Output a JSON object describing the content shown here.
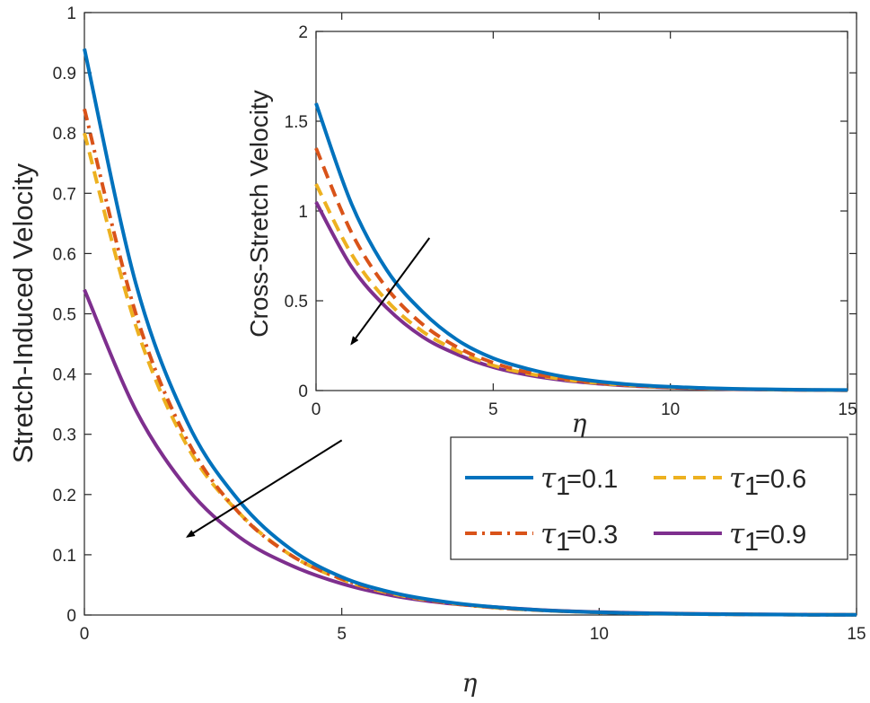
{
  "chart_data": [
    {
      "type": "line",
      "panel": "main",
      "title": "",
      "xlabel": "η",
      "ylabel": "Stretch-Induced Velocity",
      "xlim": [
        0,
        15
      ],
      "ylim": [
        0,
        1
      ],
      "xticks": [
        "0",
        "5",
        "10",
        "15"
      ],
      "yticks": [
        "0",
        "0.1",
        "0.2",
        "0.3",
        "0.4",
        "0.5",
        "0.6",
        "0.7",
        "0.8",
        "0.9",
        "1"
      ],
      "x": [
        0,
        1,
        2,
        3,
        4,
        5,
        6,
        7,
        8,
        9,
        10,
        11,
        12,
        13,
        14,
        15
      ],
      "series": [
        {
          "name": "τ1=0.1",
          "color": "#0072BD",
          "dash": "solid",
          "values": [
            0.94,
            0.55,
            0.32,
            0.19,
            0.11,
            0.063,
            0.037,
            0.022,
            0.013,
            0.0075,
            0.0044,
            0.0026,
            0.0015,
            0.0009,
            0.0005,
            0.0003
          ]
        },
        {
          "name": "τ1=0.3",
          "color": "#D95319",
          "dash": "dashdot",
          "values": [
            0.84,
            0.5,
            0.29,
            0.17,
            0.1,
            0.06,
            0.036,
            0.021,
            0.012,
            0.0074,
            0.0044,
            0.0026,
            0.0015,
            0.0009,
            0.0005,
            0.0003
          ]
        },
        {
          "name": "τ1=0.6",
          "color": "#EDB120",
          "dash": "dashed",
          "values": [
            0.8,
            0.48,
            0.28,
            0.17,
            0.1,
            0.059,
            0.035,
            0.021,
            0.012,
            0.0073,
            0.0043,
            0.0026,
            0.0015,
            0.0009,
            0.0005,
            0.0003
          ]
        },
        {
          "name": "τ1=0.9",
          "color": "#7E2F8E",
          "dash": "solid",
          "values": [
            0.54,
            0.34,
            0.21,
            0.13,
            0.083,
            0.052,
            0.032,
            0.02,
            0.013,
            0.0078,
            0.0049,
            0.003,
            0.0019,
            0.0012,
            0.0007,
            0.0005
          ]
        }
      ],
      "annotations": [
        {
          "type": "arrow",
          "text": "",
          "meaning": "increasing τ1",
          "from": [
            5.0,
            0.29
          ],
          "to": [
            2.0,
            0.13
          ]
        }
      ],
      "legend": {
        "placement": "bottom-right",
        "entries": [
          {
            "symbol": "τ",
            "subscript": "1",
            "value": "=0.1",
            "series": 0
          },
          {
            "symbol": "τ",
            "subscript": "1",
            "value": "=0.6",
            "series": 2
          },
          {
            "symbol": "τ",
            "subscript": "1",
            "value": "=0.3",
            "series": 1
          },
          {
            "symbol": "τ",
            "subscript": "1",
            "value": "=0.9",
            "series": 3
          }
        ]
      }
    },
    {
      "type": "line",
      "panel": "inset",
      "title": "",
      "xlabel": "η",
      "ylabel": "Cross-Stretch Velocity",
      "xlim": [
        0,
        15
      ],
      "ylim": [
        0,
        2
      ],
      "xticks": [
        "0",
        "5",
        "10",
        "15"
      ],
      "yticks": [
        "0",
        "0.5",
        "1",
        "1.5",
        "2"
      ],
      "x": [
        0,
        1,
        2,
        3,
        4,
        5,
        6,
        7,
        8,
        9,
        10,
        11,
        12,
        13,
        14,
        15
      ],
      "series": [
        {
          "name": "τ1=0.1",
          "color": "#0072BD",
          "dash": "solid",
          "values": [
            1.6,
            1.04,
            0.67,
            0.44,
            0.28,
            0.18,
            0.12,
            0.077,
            0.05,
            0.032,
            0.021,
            0.014,
            0.009,
            0.006,
            0.004,
            0.003
          ]
        },
        {
          "name": "τ1=0.3",
          "color": "#D95319",
          "dash": "dashed",
          "values": [
            1.35,
            0.88,
            0.57,
            0.37,
            0.24,
            0.155,
            0.1,
            0.066,
            0.043,
            0.028,
            0.018,
            0.012,
            0.008,
            0.005,
            0.003,
            0.002
          ]
        },
        {
          "name": "τ1=0.6",
          "color": "#EDB120",
          "dash": "dashed",
          "values": [
            1.15,
            0.76,
            0.5,
            0.33,
            0.22,
            0.14,
            0.094,
            0.062,
            0.041,
            0.027,
            0.018,
            0.012,
            0.008,
            0.005,
            0.003,
            0.002
          ]
        },
        {
          "name": "τ1=0.9",
          "color": "#7E2F8E",
          "dash": "solid",
          "values": [
            1.05,
            0.69,
            0.46,
            0.3,
            0.2,
            0.13,
            0.086,
            0.057,
            0.038,
            0.025,
            0.016,
            0.011,
            0.007,
            0.005,
            0.003,
            0.002
          ]
        }
      ],
      "annotations": [
        {
          "type": "arrow",
          "text": "",
          "meaning": "increasing τ1",
          "from": [
            3.2,
            0.85
          ],
          "to": [
            1.0,
            0.26
          ]
        }
      ]
    }
  ]
}
